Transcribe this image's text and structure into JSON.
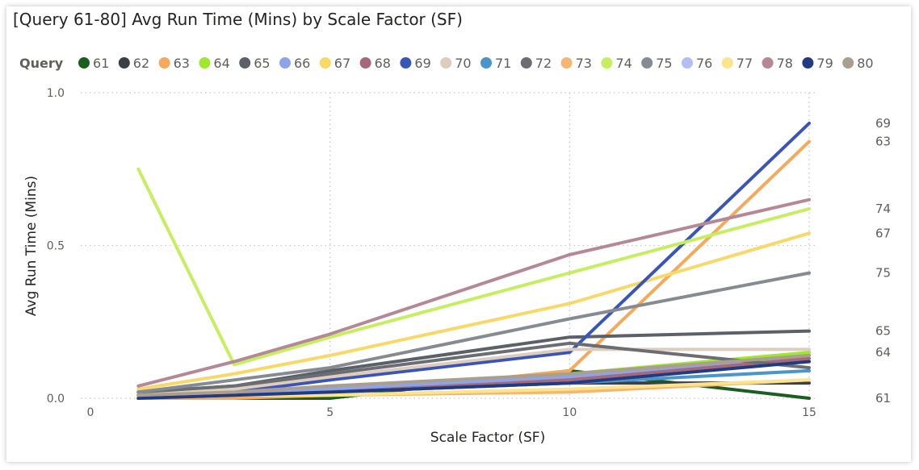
{
  "chart_data": {
    "type": "line",
    "title": "[Query 61-80] Avg Run Time (Mins) by Scale Factor (SF)",
    "legend_title": "Query",
    "legend_position": "top",
    "xlabel": "Scale Factor (SF)",
    "ylabel": "Avg Run Time (Mins)",
    "xlim": [
      0,
      15
    ],
    "ylim": [
      0,
      1
    ],
    "x_ticks": [
      "0",
      "5",
      "10",
      "15"
    ],
    "y_ticks": [
      "0.0",
      "0.5",
      "1.0"
    ],
    "grid": true,
    "x": [
      1,
      3,
      5,
      10,
      15
    ],
    "series": [
      {
        "name": "61",
        "color": "#1a5e20",
        "values": [
          0.0,
          0.0,
          0.0,
          0.09,
          0.0
        ],
        "end_label": "61"
      },
      {
        "name": "62",
        "color": "#3b3f46",
        "values": [
          0.01,
          0.01,
          0.02,
          0.05,
          0.05
        ],
        "end_label": ""
      },
      {
        "name": "63",
        "color": "#f4a95b",
        "values": [
          0.0,
          0.0,
          0.01,
          0.09,
          0.84
        ],
        "end_label": "63"
      },
      {
        "name": "64",
        "color": "#9ee82e",
        "values": [
          0.01,
          0.02,
          0.03,
          0.08,
          0.15
        ],
        "end_label": "64"
      },
      {
        "name": "65",
        "color": "#5c6068",
        "values": [
          0.02,
          0.04,
          0.09,
          0.2,
          0.22
        ],
        "end_label": "65"
      },
      {
        "name": "66",
        "color": "#8ea4e8",
        "values": [
          0.01,
          0.02,
          0.03,
          0.07,
          0.14
        ],
        "end_label": ""
      },
      {
        "name": "67",
        "color": "#f8d866",
        "values": [
          0.03,
          0.08,
          0.14,
          0.31,
          0.54
        ],
        "end_label": "67"
      },
      {
        "name": "68",
        "color": "#a5697a",
        "values": [
          0.01,
          0.01,
          0.02,
          0.06,
          0.13
        ],
        "end_label": ""
      },
      {
        "name": "69",
        "color": "#3a55b8",
        "values": [
          0.0,
          0.02,
          0.06,
          0.15,
          0.9
        ],
        "end_label": "69"
      },
      {
        "name": "70",
        "color": "#dccdbe",
        "values": [
          0.01,
          0.03,
          0.07,
          0.16,
          0.16
        ],
        "end_label": ""
      },
      {
        "name": "71",
        "color": "#4a95c9",
        "values": [
          0.01,
          0.01,
          0.02,
          0.05,
          0.09
        ],
        "end_label": ""
      },
      {
        "name": "72",
        "color": "#6a6d72",
        "values": [
          0.02,
          0.04,
          0.08,
          0.18,
          0.1
        ],
        "end_label": ""
      },
      {
        "name": "73",
        "color": "#f6b673",
        "values": [
          0.0,
          0.01,
          0.01,
          0.02,
          0.06
        ],
        "end_label": ""
      },
      {
        "name": "74",
        "color": "#c6ef5f",
        "values": [
          0.75,
          0.11,
          0.2,
          0.41,
          0.62
        ],
        "end_label": "74"
      },
      {
        "name": "75",
        "color": "#868b91",
        "values": [
          0.02,
          0.06,
          0.1,
          0.26,
          0.41
        ],
        "end_label": "75"
      },
      {
        "name": "76",
        "color": "#b3bff0",
        "values": [
          0.01,
          0.01,
          0.02,
          0.05,
          0.12
        ],
        "end_label": ""
      },
      {
        "name": "77",
        "color": "#fce48d",
        "values": [
          0.0,
          0.01,
          0.01,
          0.03,
          0.06
        ],
        "end_label": ""
      },
      {
        "name": "78",
        "color": "#b48895",
        "values": [
          0.04,
          0.12,
          0.21,
          0.47,
          0.65
        ],
        "end_label": ""
      },
      {
        "name": "79",
        "color": "#213a80",
        "values": [
          0.0,
          0.01,
          0.02,
          0.05,
          0.12
        ],
        "end_label": ""
      },
      {
        "name": "80",
        "color": "#aa9e8e",
        "values": [
          0.01,
          0.02,
          0.04,
          0.08,
          0.14
        ],
        "end_label": ""
      }
    ]
  }
}
